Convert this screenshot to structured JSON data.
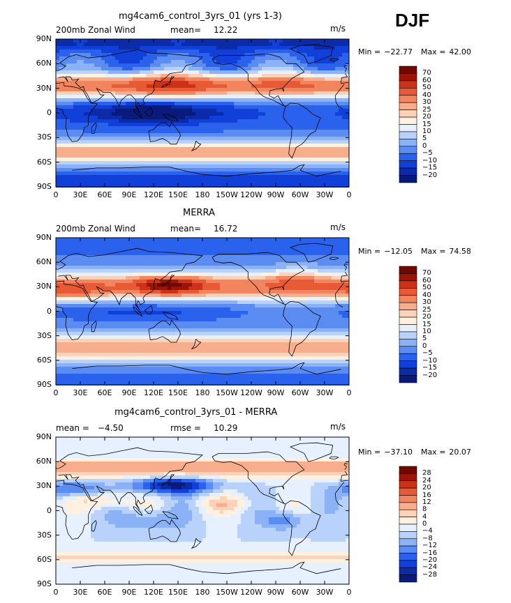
{
  "season": "DJF",
  "x_ticks": [
    "0",
    "30E",
    "60E",
    "90E",
    "120E",
    "150E",
    "180",
    "150W",
    "120W",
    "90W",
    "60W",
    "30W",
    "0"
  ],
  "y_ticks": [
    "90N",
    "60N",
    "30N",
    "0",
    "30S",
    "60S",
    "90S"
  ],
  "panels": [
    {
      "title": "mg4cam6_control_3yrs_01 (yrs 1-3)",
      "left_label": "200mb Zonal Wind",
      "stat_label": "mean=",
      "stat_value": "12.22",
      "units": "m/s",
      "min_label": "Min =",
      "min_value": "−22.77",
      "max_label": "Max =",
      "max_value": "42.00",
      "colorbar_labels": [
        "70",
        "60",
        "50",
        "40",
        "30",
        "25",
        "20",
        "15",
        "10",
        "5",
        "0",
        "−5",
        "−10",
        "−15",
        "−20"
      ]
    },
    {
      "title": "MERRA",
      "left_label": "200mb Zonal Wind",
      "stat_label": "mean=",
      "stat_value": "16.72",
      "units": "m/s",
      "min_label": "Min =",
      "min_value": "−12.05",
      "max_label": "Max =",
      "max_value": "74.58",
      "colorbar_labels": [
        "70",
        "60",
        "50",
        "40",
        "30",
        "25",
        "20",
        "15",
        "10",
        "5",
        "0",
        "−5",
        "−10",
        "−15",
        "−20"
      ]
    },
    {
      "title": "mg4cam6_control_3yrs_01 - MERRA",
      "left_label": "mean =",
      "left_value": "−4.50",
      "stat_label": "rmse =",
      "stat_value": "10.29",
      "units": "m/s",
      "min_label": "Min =",
      "min_value": "−37.10",
      "max_label": "Max =",
      "max_value": "20.07",
      "colorbar_labels": [
        "28",
        "24",
        "20",
        "16",
        "12",
        "8",
        "4",
        "0",
        "−4",
        "−8",
        "−12",
        "−16",
        "−20",
        "−24",
        "−28"
      ]
    }
  ],
  "colors": {
    "abs_scale": [
      "#0a1a7a",
      "#0b2ba8",
      "#1140d8",
      "#2a62ee",
      "#5b8cf2",
      "#8bb2f6",
      "#b9d2fb",
      "#e6f0ff",
      "#fff0e0",
      "#fcd3b8",
      "#f8ad8c",
      "#f2845e",
      "#e85a36",
      "#cc3218",
      "#9c1408",
      "#700800"
    ],
    "diff_scale": [
      "#0a1a7a",
      "#0b2ba8",
      "#1140d8",
      "#2a62ee",
      "#5b8cf2",
      "#8bb2f6",
      "#b9d2fb",
      "#e6f0ff",
      "#fff0e0",
      "#fcd3b8",
      "#f8ad8c",
      "#f2845e",
      "#e85a36",
      "#cc3218",
      "#9c1408",
      "#700800"
    ]
  }
}
